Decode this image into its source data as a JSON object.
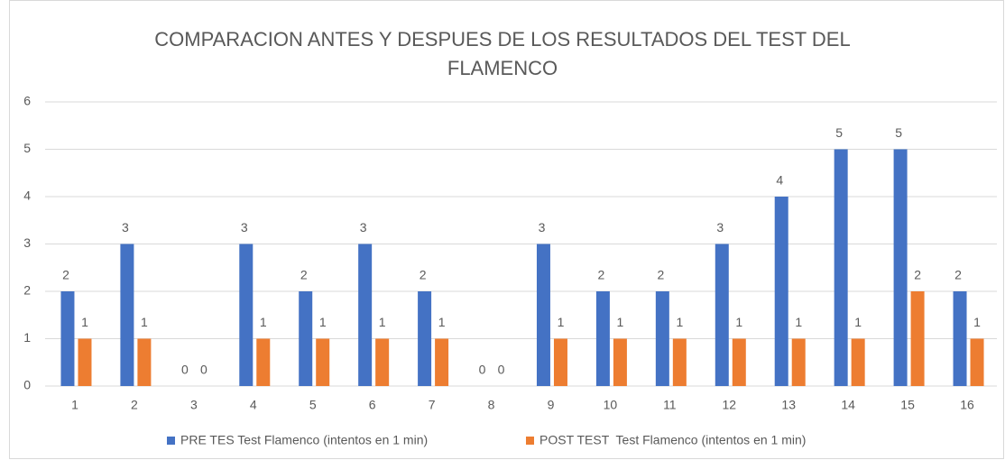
{
  "chart_data": {
    "type": "bar",
    "title": "COMPARACION ANTES Y DESPUES DE LOS RESULTADOS DEL TEST DEL FLAMENCO",
    "categories": [
      1,
      2,
      3,
      4,
      5,
      6,
      7,
      8,
      9,
      10,
      11,
      12,
      13,
      14,
      15,
      16
    ],
    "series": [
      {
        "name": "PRE TES Test Flamenco (intentos en 1 min)",
        "color": "#4472c4",
        "values": [
          2,
          3,
          0,
          3,
          2,
          3,
          2,
          0,
          3,
          2,
          2,
          3,
          4,
          5,
          5,
          2
        ]
      },
      {
        "name": "POST TEST  Test Flamenco (intentos en 1 min)",
        "color": "#ed7d31",
        "values": [
          1,
          1,
          0,
          1,
          1,
          1,
          1,
          0,
          1,
          1,
          1,
          1,
          1,
          1,
          2,
          1
        ]
      }
    ],
    "ylim": [
      0,
      6
    ],
    "yticks": [
      0,
      1,
      2,
      3,
      4,
      5,
      6
    ],
    "grid": true,
    "legend": "bottom"
  }
}
